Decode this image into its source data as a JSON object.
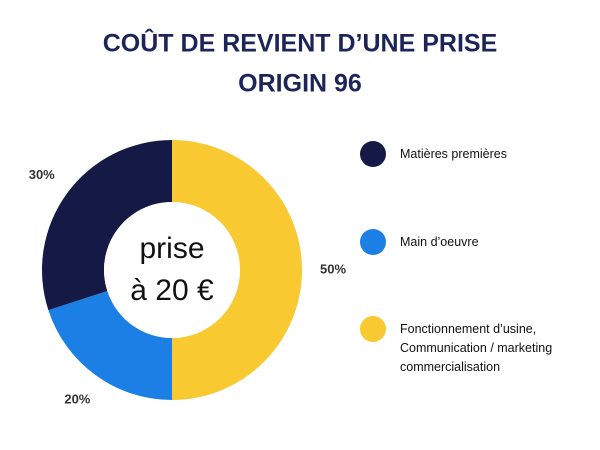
{
  "chart_data": {
    "type": "pie",
    "title": "COÛT DE REVIENT D’UNE PRISE",
    "subtitle": "ORIGIN 96",
    "center_label": [
      "prise",
      "à 20 €"
    ],
    "categories": [
      "Fonctionnement d’usine, Communication / marketing commercialisation",
      "Main d’oeuvre",
      "Matières premières"
    ],
    "values": [
      50,
      20,
      30
    ],
    "value_labels": [
      "50%",
      "20%",
      "30%"
    ],
    "colors": [
      "#f9c932",
      "#1b7fe6",
      "#141a45"
    ],
    "legend_order": [
      2,
      1,
      0
    ]
  }
}
